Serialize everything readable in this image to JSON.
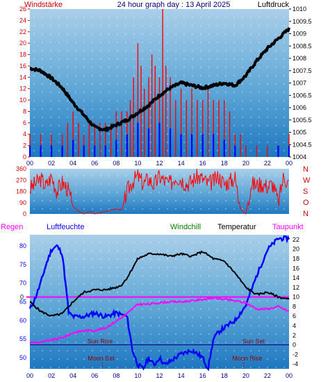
{
  "header": {
    "left_label": "Windstärke",
    "title": "24 hour graph day : 13 April 2025",
    "right_label": "Luftdruck"
  },
  "colors": {
    "wind": "#ff0000",
    "gust_bars": "#ff0000",
    "wind_avg": "#0000ff",
    "pressure": "#000000",
    "humidity": "#0000ff",
    "temperature": "#000000",
    "dewpoint": "#ff00ff",
    "rain": "#ff00ff",
    "windchill": "#008000",
    "sun_line": "#000080",
    "moon_marker": "#cc0000"
  },
  "chart_data": [
    {
      "type": "bar",
      "x_ticks": [
        "00",
        "02",
        "04",
        "06",
        "08",
        "10",
        "12",
        "14",
        "16",
        "18",
        "20",
        "22",
        "00"
      ],
      "y_left": {
        "ticks": [
          0,
          2,
          4,
          6,
          8,
          10,
          12,
          14,
          16,
          18,
          20,
          22,
          24,
          26
        ],
        "ylim": [
          0,
          26
        ]
      },
      "y_right": {
        "ticks": [
          1004,
          1004.5,
          1005,
          1005.5,
          1006,
          1006.5,
          1007,
          1007.5,
          1008,
          1008.5,
          1009,
          1009.5,
          1010
        ],
        "ylim": [
          1004,
          1010
        ]
      },
      "series": [
        {
          "name": "Windstärke",
          "axis": "left",
          "role": "gust",
          "x": [
            0,
            1,
            2,
            3,
            3.5,
            4,
            4.5,
            5,
            5.5,
            6,
            6.5,
            7,
            7.5,
            8,
            8.5,
            9,
            9.3,
            9.6,
            10,
            10.3,
            10.6,
            11,
            11.3,
            11.6,
            12,
            12.3,
            12.6,
            13,
            13.5,
            14,
            14.5,
            15,
            15.5,
            16,
            16.5,
            17,
            17.5,
            18,
            18.5,
            19,
            19.5,
            20,
            21,
            22,
            23,
            24
          ],
          "y": [
            4,
            4,
            4,
            4,
            6,
            8,
            6,
            4,
            6,
            6,
            6,
            6,
            6,
            8,
            8,
            8,
            10,
            14,
            20,
            16,
            12,
            14,
            18,
            16,
            14,
            26,
            16,
            14,
            10,
            12,
            10,
            12,
            10,
            10,
            12,
            10,
            10,
            10,
            8,
            4,
            4,
            2,
            2,
            2,
            2,
            4
          ]
        },
        {
          "name": "Windmittel",
          "axis": "left",
          "role": "average",
          "x": [
            0,
            1,
            2,
            3,
            4,
            5,
            6,
            7,
            8,
            9,
            10,
            11,
            12,
            13,
            14,
            15,
            16,
            17,
            18,
            19,
            20,
            21,
            22,
            23,
            24
          ],
          "y": [
            2,
            2,
            2,
            2,
            3,
            2,
            2,
            2,
            3,
            4,
            6,
            5,
            6,
            5,
            4,
            4,
            4,
            4,
            3,
            2,
            0,
            0,
            0,
            2,
            2
          ]
        },
        {
          "name": "Luftdruck",
          "axis": "right",
          "x": [
            0,
            1,
            2,
            3,
            4,
            5,
            6,
            7,
            8,
            9,
            10,
            11,
            12,
            13,
            14,
            15,
            16,
            17,
            18,
            19,
            20,
            21,
            22,
            23,
            24
          ],
          "y": [
            1007.6,
            1007.5,
            1007.2,
            1006.8,
            1006.2,
            1005.7,
            1005.2,
            1005.1,
            1005.3,
            1005.5,
            1005.8,
            1006.1,
            1006.5,
            1006.8,
            1007.0,
            1006.9,
            1006.8,
            1006.9,
            1007.0,
            1006.9,
            1007.3,
            1007.9,
            1008.4,
            1008.8,
            1009.2
          ]
        }
      ]
    },
    {
      "type": "line",
      "x_ticks": [],
      "y_left": {
        "ticks": [
          0,
          90,
          180,
          270,
          360
        ],
        "ylim": [
          0,
          360
        ]
      },
      "y_right": {
        "ticks": [
          "N",
          "W",
          "S",
          "O",
          "N"
        ]
      },
      "series": [
        {
          "name": "Windrichtung",
          "x": [
            0,
            0.5,
            1,
            1.5,
            2,
            2.5,
            3,
            3.5,
            4,
            4.5,
            5,
            5.5,
            6,
            6.5,
            7,
            7.5,
            8,
            8.5,
            9,
            9.5,
            10,
            10.5,
            11,
            11.5,
            12,
            12.5,
            13,
            13.5,
            14,
            14.5,
            15,
            15.5,
            16,
            16.5,
            17,
            17.5,
            18,
            18.5,
            19,
            19.5,
            20,
            20.5,
            21,
            21.5,
            22,
            22.5,
            23,
            23.5,
            24
          ],
          "y": [
            200,
            240,
            280,
            220,
            300,
            180,
            250,
            200,
            60,
            20,
            0,
            20,
            0,
            10,
            20,
            30,
            40,
            30,
            180,
            260,
            300,
            240,
            280,
            230,
            300,
            260,
            240,
            300,
            280,
            240,
            260,
            300,
            280,
            240,
            260,
            300,
            240,
            260,
            290,
            40,
            0,
            240,
            230,
            240,
            220,
            240,
            90,
            300,
            240
          ]
        }
      ]
    },
    {
      "type": "line",
      "x_ticks": [
        "00",
        "02",
        "04",
        "06",
        "08",
        "10",
        "12",
        "14",
        "16",
        "18",
        "20",
        "22",
        "00"
      ],
      "y_left": {
        "ticks": [
          50,
          55,
          60,
          65,
          70,
          75,
          80
        ],
        "ylim": [
          47,
          83
        ]
      },
      "y_right": {
        "ticks": [
          -4,
          -2,
          0,
          2,
          4,
          6,
          8,
          10,
          12,
          14,
          16,
          18,
          20,
          22
        ],
        "ylim": [
          -5,
          23
        ]
      },
      "top_labels": {
        "rain": "Regen",
        "humidity": "Luftfeuchte",
        "windchill": "Windchill",
        "temperature": "Temperatur",
        "dewpoint": "Taupunkt"
      },
      "annotations": {
        "sun_rise": "Sun Rise",
        "sun_set": "Sun Set",
        "moon_set": "Moon Set",
        "moon_rise": "Moon Rise",
        "rain_zero": "0"
      },
      "sun_rise_hour": 6.5,
      "sun_set_hour": 20.2,
      "moon_set_hour": 6.6,
      "moon_rise_hour": 19.8,
      "series": [
        {
          "name": "Luftfeuchte",
          "axis": "left",
          "x": [
            0,
            0.5,
            1,
            1.5,
            2,
            2.5,
            3,
            3.3,
            3.6,
            4,
            5,
            6,
            7,
            8,
            9,
            9.5,
            10,
            10.5,
            11,
            11.5,
            12,
            12.5,
            13,
            14,
            15,
            16,
            16.5,
            17,
            17.5,
            18,
            19,
            20,
            21,
            22,
            23,
            24
          ],
          "y": [
            63,
            66,
            70,
            75,
            79,
            80,
            78,
            70,
            62,
            61,
            61,
            62,
            61,
            62,
            61,
            52,
            48,
            47,
            50,
            48,
            50,
            48,
            49,
            51,
            52,
            50,
            47,
            55,
            57,
            58,
            60,
            64,
            72,
            79,
            82,
            82
          ]
        },
        {
          "name": "Temperatur",
          "axis": "right",
          "x": [
            0,
            1,
            2,
            3,
            4,
            5,
            6,
            7,
            8,
            8.5,
            9,
            9.5,
            10,
            11,
            12,
            13,
            14,
            15,
            16,
            17,
            18,
            19,
            20,
            21,
            22,
            23,
            24
          ],
          "y": [
            9,
            7,
            6,
            6.5,
            9,
            11,
            11.5,
            11.5,
            12,
            12.5,
            14,
            16,
            18,
            19,
            19,
            18.5,
            19,
            18.5,
            19.5,
            18,
            17.5,
            15,
            12,
            10.5,
            11,
            10,
            9.5
          ]
        },
        {
          "name": "Taupunkt",
          "axis": "right",
          "x": [
            0,
            1,
            2,
            3,
            4,
            5,
            6,
            7,
            8,
            9,
            10,
            11,
            12,
            13,
            14,
            15,
            16,
            17,
            18,
            19,
            20,
            21,
            22,
            23,
            24
          ],
          "y": [
            0.5,
            0.5,
            1,
            1.5,
            2.5,
            3,
            3,
            3.5,
            5,
            6.5,
            8.5,
            8.5,
            8.8,
            9,
            9,
            9.2,
            9.5,
            9.8,
            9.5,
            9.2,
            8.8,
            7.5,
            7.5,
            8,
            7
          ]
        }
      ]
    }
  ]
}
